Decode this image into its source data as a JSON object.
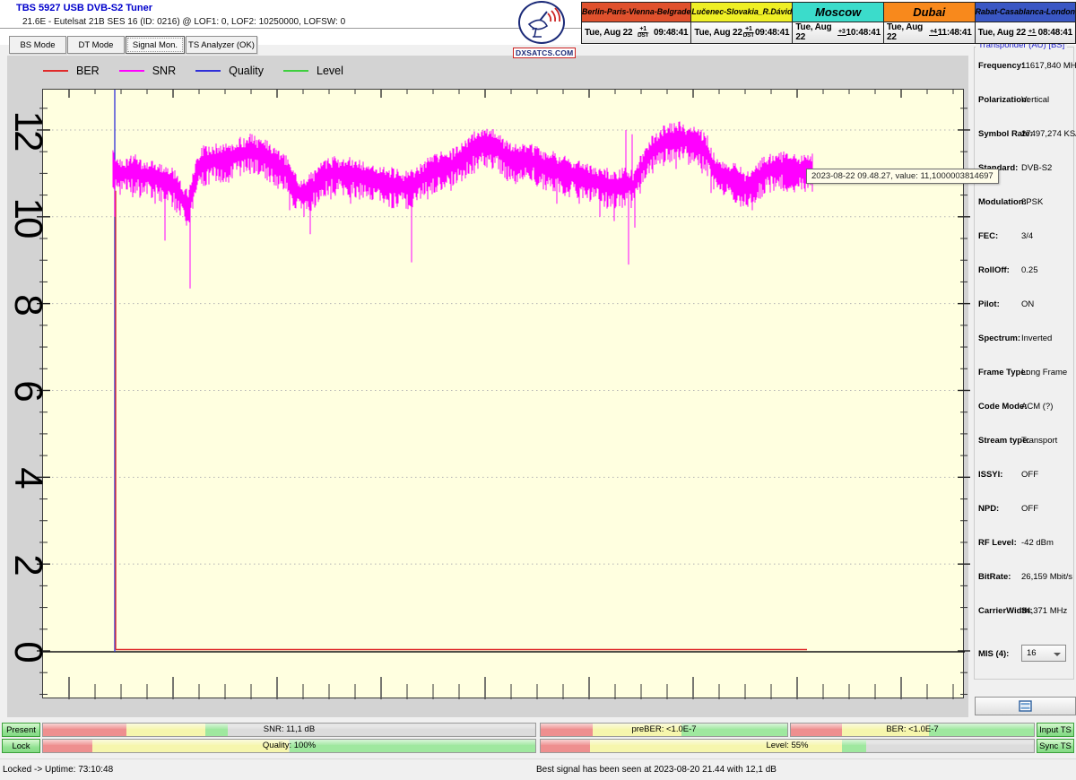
{
  "window": {
    "title": "TBS 5927 USB DVB-S2 Tuner",
    "subtitle": "21.6E - Eutelsat 21B  SES 16 (ID: 0216) @ LOF1: 0, LOF2: 10250000, LOFSW: 0"
  },
  "logo": {
    "text": "DXSATCS.COM"
  },
  "clocks": [
    {
      "name": "Berlin-Paris-Vienna-Belgrade",
      "color": "#e0512d",
      "date": "Tue, Aug 22",
      "offset": "+1",
      "dst": "DST",
      "time": "09:48:41"
    },
    {
      "name": "Lučenec-Slovakia_R.Dávid",
      "color": "#efef25",
      "date": "Tue, Aug 22",
      "offset": "+1",
      "dst": "DST",
      "time": "09:48:41"
    },
    {
      "name": "Moscow",
      "color": "#3bdccb",
      "date": "Tue, Aug 22",
      "offset": "+3",
      "dst": "",
      "time": "10:48:41"
    },
    {
      "name": "Dubai",
      "color": "#f8891c",
      "date": "Tue, Aug 22",
      "offset": "+4",
      "dst": "",
      "time": "11:48:41"
    },
    {
      "name": "Rabat-Casablanca-London",
      "color": "#3a57c4",
      "date": "Tue, Aug 22",
      "offset": "+1",
      "dst": "",
      "time": "08:48:41"
    }
  ],
  "tabs": [
    {
      "label": "BS Mode",
      "active": false
    },
    {
      "label": "DT Mode",
      "active": false
    },
    {
      "label": "Signal Mon.",
      "active": true
    },
    {
      "label": "TS Analyzer (OK)",
      "active": false
    }
  ],
  "chart_data": {
    "type": "line",
    "title": "",
    "xlabel": "",
    "ylabel": "",
    "yticks": [
      0,
      2,
      4,
      6,
      8,
      10,
      12
    ],
    "ylim": [
      -1.1,
      12.95
    ],
    "x_tick_labels": "none shown (time axis, unlabeled ticks)",
    "grid_dotted_at": [
      2,
      4,
      6,
      8,
      10,
      12
    ],
    "plot_bg": "#ffffe0",
    "legend_position": "top",
    "series": [
      {
        "name": "BER",
        "color": "#e02a2a",
        "unit": "",
        "desc": "constant 0 along baseline from capture start to end",
        "baseline_points": [
          [
            128,
            0
          ],
          [
            899,
            0
          ]
        ]
      },
      {
        "name": "SNR",
        "color": "#ff00ff",
        "unit": "dB",
        "noise_halfwidth_dB": 0.18,
        "profile": [
          [
            125,
            11.15
          ],
          [
            132,
            10.95
          ],
          [
            140,
            11.0
          ],
          [
            150,
            11.05
          ],
          [
            158,
            10.9
          ],
          [
            166,
            10.95
          ],
          [
            175,
            10.85
          ],
          [
            183,
            10.8
          ],
          [
            190,
            10.75
          ],
          [
            197,
            10.6
          ],
          [
            204,
            10.35
          ],
          [
            209,
            10.2
          ],
          [
            213,
            10.55
          ],
          [
            218,
            11.0
          ],
          [
            224,
            11.2
          ],
          [
            230,
            11.25
          ],
          [
            238,
            11.3
          ],
          [
            246,
            11.25
          ],
          [
            254,
            11.3
          ],
          [
            262,
            11.4
          ],
          [
            270,
            11.45
          ],
          [
            278,
            11.5
          ],
          [
            286,
            11.45
          ],
          [
            294,
            11.4
          ],
          [
            302,
            11.25
          ],
          [
            310,
            11.15
          ],
          [
            318,
            11.05
          ],
          [
            326,
            10.7
          ],
          [
            334,
            10.5
          ],
          [
            342,
            10.55
          ],
          [
            350,
            10.7
          ],
          [
            358,
            10.9
          ],
          [
            366,
            11.0
          ],
          [
            375,
            11.0
          ],
          [
            384,
            10.95
          ],
          [
            393,
            10.95
          ],
          [
            402,
            10.9
          ],
          [
            411,
            10.85
          ],
          [
            420,
            10.8
          ],
          [
            429,
            10.75
          ],
          [
            438,
            10.7
          ],
          [
            447,
            10.7
          ],
          [
            456,
            10.65
          ],
          [
            465,
            10.8
          ],
          [
            474,
            10.95
          ],
          [
            483,
            11.05
          ],
          [
            492,
            11.1
          ],
          [
            501,
            11.15
          ],
          [
            510,
            11.25
          ],
          [
            519,
            11.4
          ],
          [
            528,
            11.55
          ],
          [
            537,
            11.65
          ],
          [
            546,
            11.65
          ],
          [
            555,
            11.55
          ],
          [
            564,
            11.35
          ],
          [
            573,
            11.25
          ],
          [
            582,
            11.3
          ],
          [
            591,
            11.3
          ],
          [
            600,
            11.2
          ],
          [
            609,
            11.1
          ],
          [
            618,
            11.1
          ],
          [
            627,
            11.0
          ],
          [
            636,
            10.95
          ],
          [
            645,
            10.9
          ],
          [
            654,
            10.85
          ],
          [
            663,
            10.8
          ],
          [
            672,
            10.75
          ],
          [
            681,
            10.65
          ],
          [
            690,
            10.7
          ],
          [
            698,
            10.75
          ],
          [
            705,
            10.7
          ],
          [
            712,
            11.0
          ],
          [
            719,
            11.3
          ],
          [
            726,
            11.5
          ],
          [
            733,
            11.6
          ],
          [
            740,
            11.7
          ],
          [
            748,
            11.75
          ],
          [
            756,
            11.8
          ],
          [
            764,
            11.75
          ],
          [
            772,
            11.7
          ],
          [
            780,
            11.65
          ],
          [
            788,
            11.45
          ],
          [
            794,
            11.1
          ],
          [
            800,
            11.0
          ],
          [
            808,
            10.9
          ],
          [
            816,
            10.85
          ],
          [
            824,
            10.75
          ],
          [
            832,
            10.65
          ],
          [
            840,
            10.75
          ],
          [
            848,
            10.95
          ],
          [
            856,
            11.05
          ],
          [
            864,
            11.1
          ],
          [
            872,
            11.1
          ],
          [
            880,
            11.05
          ],
          [
            888,
            11.05
          ],
          [
            896,
            11.05
          ],
          [
            905,
            11.1
          ]
        ],
        "spikes_down": [
          [
            127,
            10.0
          ],
          [
            147,
            10.45
          ],
          [
            172,
            10.3
          ],
          [
            183,
            9.45
          ],
          [
            196,
            10.1
          ],
          [
            211,
            8.35
          ],
          [
            248,
            10.8
          ],
          [
            282,
            11.0
          ],
          [
            322,
            10.15
          ],
          [
            338,
            10.0
          ],
          [
            345,
            9.6
          ],
          [
            368,
            10.4
          ],
          [
            390,
            10.3
          ],
          [
            412,
            10.4
          ],
          [
            438,
            10.3
          ],
          [
            458,
            8.95
          ],
          [
            476,
            10.4
          ],
          [
            502,
            10.6
          ],
          [
            528,
            11.0
          ],
          [
            548,
            11.1
          ],
          [
            562,
            10.9
          ],
          [
            576,
            10.8
          ],
          [
            598,
            10.7
          ],
          [
            620,
            10.3
          ],
          [
            634,
            10.45
          ],
          [
            645,
            10.3
          ],
          [
            657,
            10.35
          ],
          [
            668,
            10.0
          ],
          [
            676,
            10.2
          ],
          [
            684,
            9.9
          ],
          [
            700,
            8.9
          ],
          [
            707,
            9.75
          ],
          [
            716,
            10.8
          ],
          [
            727,
            11.0
          ],
          [
            753,
            11.1
          ],
          [
            767,
            11.2
          ],
          [
            782,
            11.0
          ],
          [
            792,
            10.55
          ],
          [
            806,
            10.5
          ],
          [
            818,
            10.4
          ],
          [
            828,
            10.25
          ],
          [
            838,
            10.15
          ],
          [
            852,
            10.55
          ],
          [
            862,
            10.6
          ],
          [
            876,
            10.75
          ],
          [
            890,
            10.7
          ]
        ],
        "spikes_up": [
          [
            266,
            11.8
          ],
          [
            280,
            11.9
          ],
          [
            537,
            12.0
          ],
          [
            697,
            12.0
          ],
          [
            704,
            11.9
          ],
          [
            736,
            12.0
          ],
          [
            744,
            12.05
          ],
          [
            760,
            12.0
          ]
        ],
        "current_value": "11,1000003814697"
      },
      {
        "name": "Quality",
        "color": "#2f2fd8",
        "unit": "%",
        "desc": "vertical line at capture start (jumps off-scale to 100%)",
        "x_start": 127
      },
      {
        "name": "Level",
        "color": "#3ecf3e",
        "unit": "%",
        "desc": "not visible inside plotted range"
      }
    ]
  },
  "tooltip": {
    "text": "2023-08-22 09.48.27, value: 11,1000003814697"
  },
  "transponder": {
    "title": "Transponder (AU) [BS]",
    "rows": [
      {
        "label": "Frequency:",
        "value": "11617,840 MHz"
      },
      {
        "label": "Polarization:",
        "value": "Vertical"
      },
      {
        "label": "Symbol Rate:",
        "value": "27497,274 KS/s"
      },
      {
        "label": "Standard:",
        "value": "DVB-S2"
      },
      {
        "label": "Modulation:",
        "value": "8PSK"
      },
      {
        "label": "FEC:",
        "value": "3/4"
      },
      {
        "label": "RollOff:",
        "value": "0.25"
      },
      {
        "label": "Pilot:",
        "value": "ON"
      },
      {
        "label": "Spectrum:",
        "value": "Inverted"
      },
      {
        "label": "Frame Type:",
        "value": "Long Frame"
      },
      {
        "label": "Code Mode:",
        "value": "ACM (?)"
      },
      {
        "label": "Stream type:",
        "value": "Transport"
      },
      {
        "label": "ISSYI:",
        "value": "OFF"
      },
      {
        "label": "NPD:",
        "value": "OFF"
      },
      {
        "label": "RF Level:",
        "value": "-42 dBm"
      },
      {
        "label": "BitRate:",
        "value": "26,159 Mbit/s"
      },
      {
        "label": "CarrierWidth:",
        "value": "34,371 MHz"
      }
    ],
    "mis_label": "MIS (4):",
    "mis_value": "16"
  },
  "palette": {
    "red": "#ee8f8f",
    "yellow": "#f6f6ad",
    "green": "#9fe89f",
    "track": "#dcdcdc"
  },
  "monitor_bars": {
    "snr": {
      "label": "SNR: 11,1 dB",
      "zones": [
        [
          "red",
          17
        ],
        [
          "yellow",
          33
        ],
        [
          "green",
          37.5
        ]
      ]
    },
    "preber": {
      "label": "preBER: <1.0E-7",
      "zones": [
        [
          "red",
          21
        ],
        [
          "yellow",
          57
        ],
        [
          "green",
          100
        ]
      ]
    },
    "ber": {
      "label": "BER: <1.0E-7",
      "zones": [
        [
          "red",
          21
        ],
        [
          "yellow",
          57
        ],
        [
          "green",
          100
        ]
      ]
    },
    "quality": {
      "label": "Quality: 100%",
      "zones": [
        [
          "red",
          10
        ],
        [
          "yellow",
          50
        ],
        [
          "green",
          100
        ]
      ]
    },
    "level": {
      "label": "Level: 55%",
      "zones": [
        [
          "red",
          10
        ],
        [
          "yellow",
          61
        ],
        [
          "green",
          66
        ]
      ]
    }
  },
  "buttons": {
    "present": "Present",
    "lock": "Lock",
    "input_ts": "Input TS",
    "sync_ts": "Sync TS"
  },
  "statusbar": {
    "left": "Locked -> Uptime: 73:10:48",
    "right": "Best signal has been seen at 2023-08-20 21.44 with 12,1 dB"
  }
}
